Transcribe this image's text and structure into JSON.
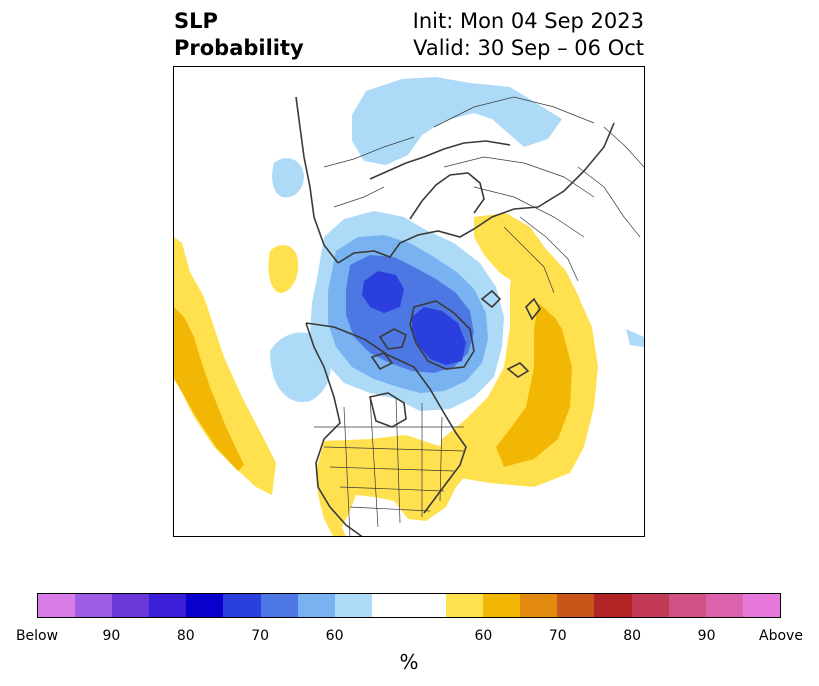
{
  "title": {
    "left_line1": "SLP",
    "left_line2": "Probability",
    "right_line1": "Init: Mon 04 Sep 2023",
    "right_line2": "Valid: 30 Sep – 06 Oct"
  },
  "map": {
    "projection": "north-polar-stereographic",
    "features": [
      "coastlines",
      "country-borders",
      "state-province-borders"
    ],
    "anomaly_regions": [
      {
        "region": "central Arctic / Greenland",
        "category": "below",
        "max_probability_bin": "80"
      },
      {
        "region": "northern Europe / Scandinavia",
        "category": "below",
        "max_probability_bin": "60"
      },
      {
        "region": "Alaska / Bering region",
        "category": "below",
        "max_probability_bin": "60"
      },
      {
        "region": "eastern North Pacific",
        "category": "above",
        "max_probability_bin": "60"
      },
      {
        "region": "North Atlantic",
        "category": "above",
        "max_probability_bin": "60"
      },
      {
        "region": "central and eastern United States",
        "category": "above",
        "max_probability_bin": "50"
      },
      {
        "region": "Eastern Europe / western Russia",
        "category": "above",
        "max_probability_bin": "50"
      }
    ]
  },
  "colorbar": {
    "colors": [
      "#d97ee8",
      "#9e5ee3",
      "#6a38d8",
      "#3a1fd6",
      "#0a00cc",
      "#2a3fdd",
      "#4d78e3",
      "#78b2f0",
      "#addaf7",
      "#ffffff",
      "#ffe14f",
      "#f2b705",
      "#e28a0e",
      "#c85519",
      "#b22326",
      "#c23a55",
      "#d05184",
      "#dc62ad",
      "#e779dc"
    ],
    "tick_labels": [
      "Below",
      "90",
      "80",
      "70",
      "60",
      "60",
      "70",
      "80",
      "90",
      "Above"
    ],
    "unit_label": "%"
  }
}
